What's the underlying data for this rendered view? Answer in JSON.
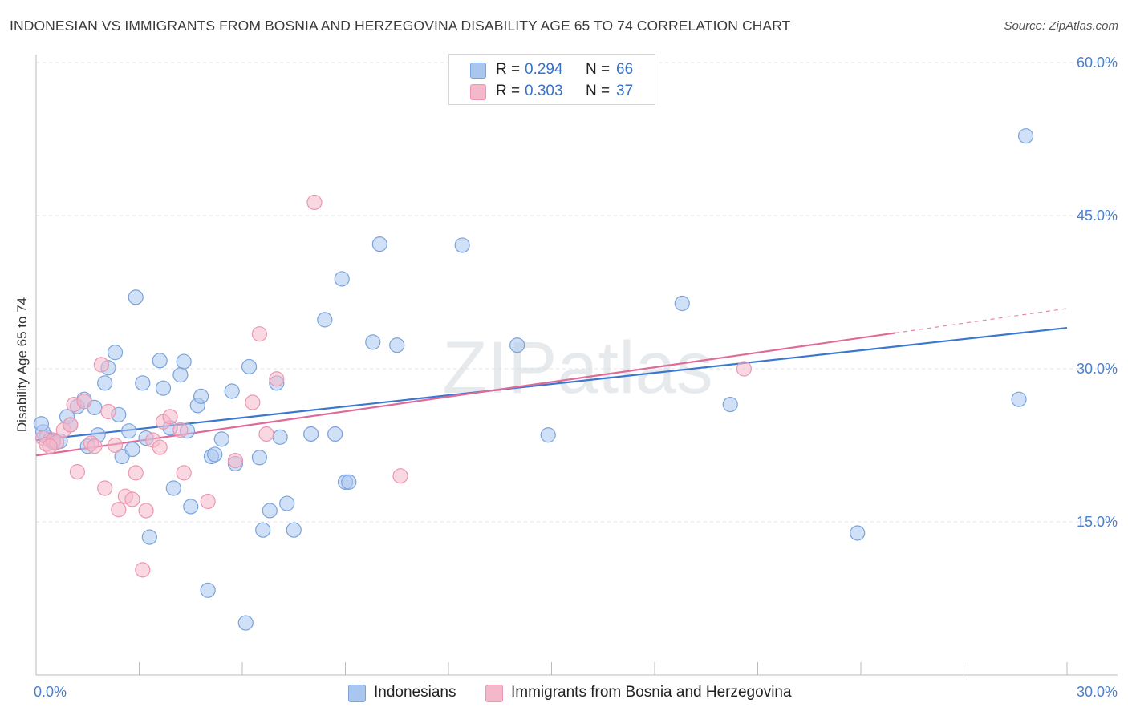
{
  "header": {
    "title": "INDONESIAN VS IMMIGRANTS FROM BOSNIA AND HERZEGOVINA DISABILITY AGE 65 TO 74 CORRELATION CHART",
    "source": "Source: ZipAtlas.com"
  },
  "legend": {
    "rows": [
      {
        "r_label": "R =",
        "r_value": "0.294",
        "n_label": "N =",
        "n_value": "66"
      },
      {
        "r_label": "R =",
        "r_value": "0.303",
        "n_label": "N =",
        "n_value": "37"
      }
    ]
  },
  "bottom_legend": {
    "items": [
      {
        "label": "Indonesians"
      },
      {
        "label": "Immigrants from Bosnia and Herzegovina"
      }
    ]
  },
  "colors": {
    "blue_fill": "#a9c6ee",
    "blue_stroke": "#7aa3dc",
    "blue_line": "#3a78d0",
    "pink_fill": "#f5b8cb",
    "pink_stroke": "#eb97b1",
    "pink_line": "#e06a98",
    "tick_text": "#4a7fd0",
    "grid": "#e3e3e3",
    "watermark": "#d5d9e0"
  },
  "watermark": "ZIPatlas",
  "chart_data": {
    "type": "scatter",
    "title": "INDONESIAN VS IMMIGRANTS FROM BOSNIA AND HERZEGOVINA DISABILITY AGE 65 TO 74 CORRELATION CHART",
    "xlabel": "",
    "ylabel": "Disability Age 65 to 74",
    "xlim": [
      0,
      30
    ],
    "ylim": [
      0,
      60
    ],
    "x_tick_labels": [
      "0.0%",
      "30.0%"
    ],
    "y_tick_labels": [
      "15.0%",
      "30.0%",
      "45.0%",
      "60.0%"
    ],
    "y_ticks": [
      15,
      30,
      45,
      60
    ],
    "grid": true,
    "legend_position": "top-center",
    "series": [
      {
        "name": "Indonesians",
        "r": 0.294,
        "n": 66,
        "trend": {
          "x": [
            0,
            30
          ],
          "y": [
            23.0,
            34.0
          ],
          "dashed_from": null
        },
        "points": [
          [
            0.2,
            23.8
          ],
          [
            0.3,
            23.3
          ],
          [
            0.4,
            23.0
          ],
          [
            0.5,
            22.8
          ],
          [
            0.7,
            22.9
          ],
          [
            0.9,
            25.3
          ],
          [
            1.0,
            24.5
          ],
          [
            1.2,
            26.3
          ],
          [
            1.4,
            27.0
          ],
          [
            1.5,
            22.4
          ],
          [
            1.7,
            26.2
          ],
          [
            1.8,
            23.5
          ],
          [
            2.0,
            28.6
          ],
          [
            2.1,
            30.1
          ],
          [
            2.3,
            31.6
          ],
          [
            2.4,
            25.5
          ],
          [
            2.5,
            21.4
          ],
          [
            2.7,
            23.9
          ],
          [
            2.8,
            22.1
          ],
          [
            2.9,
            37.0
          ],
          [
            3.1,
            28.6
          ],
          [
            3.2,
            23.2
          ],
          [
            3.3,
            13.5
          ],
          [
            3.6,
            30.8
          ],
          [
            3.7,
            28.1
          ],
          [
            3.9,
            24.2
          ],
          [
            4.0,
            18.3
          ],
          [
            4.2,
            29.4
          ],
          [
            4.3,
            30.7
          ],
          [
            4.4,
            23.9
          ],
          [
            4.5,
            16.5
          ],
          [
            4.7,
            26.4
          ],
          [
            4.8,
            27.3
          ],
          [
            5.0,
            8.3
          ],
          [
            5.1,
            21.4
          ],
          [
            5.2,
            21.6
          ],
          [
            5.4,
            23.1
          ],
          [
            5.7,
            27.8
          ],
          [
            5.8,
            20.7
          ],
          [
            6.1,
            5.1
          ],
          [
            6.2,
            30.2
          ],
          [
            6.5,
            21.3
          ],
          [
            6.6,
            14.2
          ],
          [
            6.8,
            16.1
          ],
          [
            7.0,
            28.6
          ],
          [
            7.1,
            23.3
          ],
          [
            7.3,
            16.8
          ],
          [
            7.5,
            14.2
          ],
          [
            8.0,
            23.6
          ],
          [
            8.4,
            34.8
          ],
          [
            8.7,
            23.6
          ],
          [
            8.9,
            38.8
          ],
          [
            9.0,
            18.9
          ],
          [
            9.1,
            18.9
          ],
          [
            9.8,
            32.6
          ],
          [
            10.0,
            42.2
          ],
          [
            10.5,
            32.3
          ],
          [
            12.4,
            42.1
          ],
          [
            14.0,
            32.3
          ],
          [
            14.9,
            23.5
          ],
          [
            18.8,
            36.4
          ],
          [
            20.2,
            26.5
          ],
          [
            23.9,
            13.9
          ],
          [
            28.6,
            27.0
          ],
          [
            28.8,
            52.8
          ],
          [
            0.15,
            24.6
          ]
        ]
      },
      {
        "name": "Immigrants from Bosnia and Herzegovina",
        "r": 0.303,
        "n": 37,
        "trend": {
          "x": [
            0,
            30
          ],
          "y": [
            21.5,
            35.9
          ],
          "dashed_from": 25.0
        },
        "points": [
          [
            0.2,
            23.2
          ],
          [
            0.3,
            22.6
          ],
          [
            0.5,
            23.0
          ],
          [
            0.6,
            22.8
          ],
          [
            0.8,
            24.0
          ],
          [
            1.0,
            24.5
          ],
          [
            1.1,
            26.5
          ],
          [
            1.2,
            19.9
          ],
          [
            1.4,
            26.8
          ],
          [
            1.6,
            22.7
          ],
          [
            1.7,
            22.4
          ],
          [
            1.9,
            30.4
          ],
          [
            2.0,
            18.3
          ],
          [
            2.1,
            25.8
          ],
          [
            2.3,
            22.5
          ],
          [
            2.4,
            16.2
          ],
          [
            2.6,
            17.5
          ],
          [
            2.8,
            17.2
          ],
          [
            2.9,
            19.8
          ],
          [
            3.1,
            10.3
          ],
          [
            3.2,
            16.1
          ],
          [
            3.4,
            23.0
          ],
          [
            3.6,
            22.3
          ],
          [
            3.7,
            24.8
          ],
          [
            3.9,
            25.3
          ],
          [
            4.2,
            24.0
          ],
          [
            4.3,
            19.8
          ],
          [
            5.0,
            17.0
          ],
          [
            5.8,
            21.0
          ],
          [
            6.3,
            26.7
          ],
          [
            6.5,
            33.4
          ],
          [
            6.7,
            23.6
          ],
          [
            7.0,
            29.0
          ],
          [
            8.1,
            46.3
          ],
          [
            10.6,
            19.5
          ],
          [
            20.6,
            30.0
          ],
          [
            0.4,
            22.4
          ]
        ]
      }
    ]
  }
}
